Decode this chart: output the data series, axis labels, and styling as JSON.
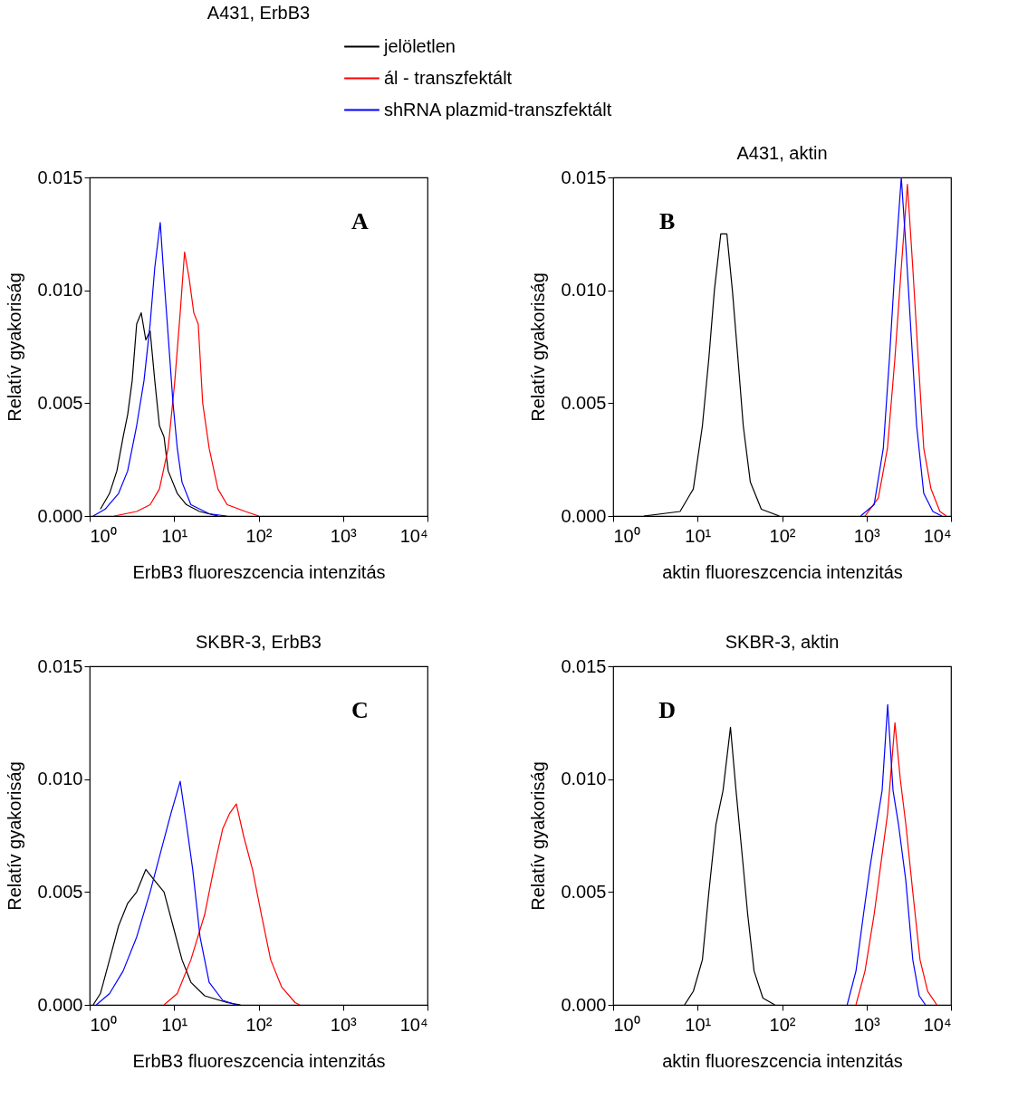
{
  "chart_data": [
    {
      "type": "line",
      "title": "A431, ErbB3",
      "xlabel": "ErbB3 fluoreszcencia intenzitás",
      "ylabel": "Relatív gyakoriság",
      "log": "x",
      "legend": "top",
      "grid": false,
      "annotations": [
        "A"
      ],
      "xlim": [
        1,
        10000
      ],
      "xticks": [
        {
          "value": 1,
          "label": "10⁰"
        },
        {
          "value": 10,
          "label": "10¹"
        },
        {
          "value": 100,
          "label": "10²"
        },
        {
          "value": 1000,
          "label": "10³"
        },
        {
          "value": 10000,
          "label": "10⁴"
        }
      ],
      "ylim": [
        0,
        0.015
      ],
      "yticks": [
        {
          "value": 0,
          "label": "0.000"
        },
        {
          "value": 0.005,
          "label": "0.005"
        },
        {
          "value": 0.01,
          "label": "0.010"
        },
        {
          "value": 0.015,
          "label": "0.015"
        }
      ],
      "series": [
        {
          "name": "jelöletlen",
          "color": "#000000",
          "x": [
            1.34,
            1.72,
            2.1,
            2.49,
            2.82,
            3.19,
            3.6,
            4.08,
            4.62,
            5.2,
            5.9,
            6.7,
            7.6,
            8.5,
            10.9,
            14,
            20,
            33
          ],
          "values": [
            0.0003,
            0.001,
            0.002,
            0.0035,
            0.0045,
            0.006,
            0.0085,
            0.009,
            0.0078,
            0.0082,
            0.006,
            0.004,
            0.0035,
            0.002,
            0.001,
            0.0005,
            0.0002,
            0
          ]
        },
        {
          "name": "ál - transzfektált",
          "color": "#ff0000",
          "x": [
            1.95,
            3.6,
            5.2,
            6.7,
            8.5,
            10.2,
            11.8,
            13.3,
            15.1,
            17.1,
            19.3,
            21.8,
            26,
            33,
            42.5,
            69.6,
            101
          ],
          "values": [
            0,
            0.0002,
            0.0005,
            0.0012,
            0.003,
            0.006,
            0.009,
            0.0117,
            0.0105,
            0.009,
            0.0085,
            0.005,
            0.003,
            0.0012,
            0.0005,
            0.0002,
            0
          ]
        },
        {
          "name": "shRNA plazmid-transzfektált",
          "color": "#0000ff",
          "x": [
            1.1,
            1.52,
            2.2,
            2.82,
            3.6,
            4.4,
            5.2,
            5.9,
            6.85,
            7.6,
            8.5,
            9.7,
            10.9,
            12.4,
            15.8,
            26,
            42
          ],
          "values": [
            0,
            0.0003,
            0.001,
            0.002,
            0.004,
            0.006,
            0.0085,
            0.011,
            0.013,
            0.0105,
            0.008,
            0.005,
            0.003,
            0.0015,
            0.0005,
            0.0001,
            0
          ]
        }
      ]
    },
    {
      "type": "line",
      "title": "A431, aktin",
      "xlabel": "aktin fluoreszcencia intenzitás",
      "ylabel": "Relatív gyakoriság",
      "log": "x",
      "grid": false,
      "annotations": [
        "B"
      ],
      "xlim": [
        1,
        10000
      ],
      "xticks": [
        {
          "value": 1,
          "label": "10⁰"
        },
        {
          "value": 10,
          "label": "10¹"
        },
        {
          "value": 100,
          "label": "10²"
        },
        {
          "value": 1000,
          "label": "10³"
        },
        {
          "value": 10000,
          "label": "10⁴"
        }
      ],
      "ylim": [
        0,
        0.015
      ],
      "yticks": [
        {
          "value": 0,
          "label": "0.000"
        },
        {
          "value": 0.005,
          "label": "0.005"
        },
        {
          "value": 0.01,
          "label": "0.010"
        },
        {
          "value": 0.015,
          "label": "0.015"
        }
      ],
      "series": [
        {
          "color": "#000000",
          "x": [
            2.31,
            6.2,
            8.9,
            11.4,
            13.6,
            15.8,
            18.8,
            22.2,
            25.8,
            30,
            34.7,
            42.1,
            56.8,
            93
          ],
          "values": [
            0,
            0.0002,
            0.0012,
            0.004,
            0.007,
            0.01,
            0.0125,
            0.0125,
            0.01,
            0.007,
            0.004,
            0.0015,
            0.0003,
            0
          ]
        },
        {
          "color": "#ff0000",
          "x": [
            960,
            1380,
            1770,
            2170,
            2580,
            3050,
            3530,
            4090,
            4760,
            5800,
            7400,
            8800
          ],
          "values": [
            0,
            0.0008,
            0.003,
            0.007,
            0.011,
            0.0147,
            0.011,
            0.007,
            0.003,
            0.0012,
            0.0002,
            0
          ]
        },
        {
          "color": "#0000ff",
          "x": [
            851,
            1230,
            1580,
            1870,
            2170,
            2580,
            2920,
            3380,
            3920,
            4760,
            6100,
            7800
          ],
          "values": [
            0,
            0.0005,
            0.003,
            0.007,
            0.011,
            0.015,
            0.012,
            0.008,
            0.004,
            0.001,
            0.0002,
            0
          ]
        }
      ]
    },
    {
      "type": "line",
      "title": "SKBR-3, ErbB3",
      "xlabel": "ErbB3 fluoreszcencia intenzitás",
      "ylabel": "Relatív gyakoriság",
      "log": "x",
      "grid": false,
      "annotations": [
        "C"
      ],
      "xlim": [
        1,
        10000
      ],
      "xticks": [
        {
          "value": 1,
          "label": "10⁰"
        },
        {
          "value": 10,
          "label": "10¹"
        },
        {
          "value": 100,
          "label": "10²"
        },
        {
          "value": 1000,
          "label": "10³"
        },
        {
          "value": 10000,
          "label": "10⁴"
        }
      ],
      "ylim": [
        0,
        0.015
      ],
      "yticks": [
        {
          "value": 0,
          "label": "0.000"
        },
        {
          "value": 0.005,
          "label": "0.005"
        },
        {
          "value": 0.01,
          "label": "0.010"
        },
        {
          "value": 0.015,
          "label": "0.015"
        }
      ],
      "series": [
        {
          "color": "#000000",
          "x": [
            1.1,
            1.34,
            1.72,
            2.2,
            2.82,
            3.6,
            4.62,
            5.9,
            7.6,
            9.7,
            12.4,
            15.8,
            23,
            42.5,
            61
          ],
          "values": [
            0,
            0.0005,
            0.002,
            0.0035,
            0.0045,
            0.005,
            0.006,
            0.0055,
            0.005,
            0.0035,
            0.002,
            0.001,
            0.0004,
            0.0001,
            0
          ]
        },
        {
          "color": "#ff0000",
          "x": [
            7.6,
            10.9,
            15.8,
            23,
            29.4,
            37.6,
            45.7,
            54.5,
            66.3,
            84.7,
            108,
            139,
            187,
            271,
            306
          ],
          "values": [
            0,
            0.0005,
            0.002,
            0.004,
            0.006,
            0.0078,
            0.0085,
            0.0089,
            0.0075,
            0.006,
            0.004,
            0.002,
            0.0008,
            0.0001,
            0
          ]
        },
        {
          "color": "#0000ff",
          "x": [
            1.2,
            1.72,
            2.49,
            3.6,
            5.2,
            7.2,
            9.2,
            11.8,
            14,
            16.6,
            20.3,
            26,
            37.6,
            54.5
          ],
          "values": [
            0,
            0.0005,
            0.0015,
            0.003,
            0.005,
            0.007,
            0.0085,
            0.0099,
            0.008,
            0.006,
            0.003,
            0.001,
            0.0002,
            0
          ]
        }
      ]
    },
    {
      "type": "line",
      "title": "SKBR-3, aktin",
      "xlabel": "aktin fluoreszcencia intenzitás",
      "ylabel": "Relatív gyakoriság",
      "log": "x",
      "grid": false,
      "annotations": [
        "D"
      ],
      "xlim": [
        1,
        10000
      ],
      "xticks": [
        {
          "value": 1,
          "label": "10⁰"
        },
        {
          "value": 10,
          "label": "10¹"
        },
        {
          "value": 100,
          "label": "10²"
        },
        {
          "value": 1000,
          "label": "10³"
        },
        {
          "value": 10000,
          "label": "10⁴"
        }
      ],
      "ylim": [
        0,
        0.015
      ],
      "yticks": [
        {
          "value": 0,
          "label": "0.000"
        },
        {
          "value": 0.005,
          "label": "0.005"
        },
        {
          "value": 0.01,
          "label": "0.010"
        },
        {
          "value": 0.015,
          "label": "0.015"
        }
      ],
      "series": [
        {
          "color": "#000000",
          "x": [
            7,
            8.9,
            11.4,
            13.6,
            16.5,
            20,
            24.5,
            28.5,
            33,
            39.2,
            46.6,
            59.3,
            82
          ],
          "values": [
            0,
            0.0006,
            0.002,
            0.005,
            0.008,
            0.0095,
            0.0123,
            0.0095,
            0.007,
            0.004,
            0.0015,
            0.0003,
            0
          ]
        },
        {
          "color": "#ff0000",
          "x": [
            750,
            960,
            1230,
            1450,
            1780,
            2170,
            2510,
            2920,
            3530,
            4300,
            5300,
            6800
          ],
          "values": [
            0,
            0.0015,
            0.004,
            0.006,
            0.0085,
            0.0125,
            0.01,
            0.008,
            0.005,
            0.002,
            0.0006,
            0
          ]
        },
        {
          "color": "#0000ff",
          "x": [
            590,
            750,
            920,
            1090,
            1320,
            1530,
            1780,
            2060,
            2390,
            2920,
            3530,
            4210,
            4980
          ],
          "values": [
            0,
            0.0015,
            0.004,
            0.006,
            0.008,
            0.0095,
            0.0133,
            0.0095,
            0.008,
            0.0055,
            0.002,
            0.0004,
            0
          ]
        }
      ]
    }
  ]
}
